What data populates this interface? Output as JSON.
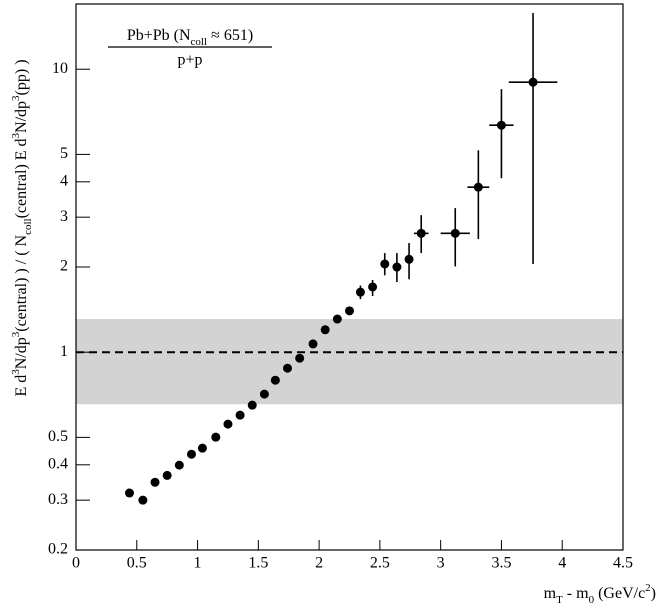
{
  "chart_data": {
    "type": "scatter",
    "annotation": {
      "numerator": [
        {
          "text": "Pb+Pb (N"
        },
        {
          "sub": "coll"
        },
        {
          "text": " ≈ 651)"
        }
      ],
      "denominator": "p+p"
    },
    "ylabel": [
      {
        "text": "E d"
      },
      {
        "sup": "3"
      },
      {
        "text": "N/dp"
      },
      {
        "sup": "3"
      },
      {
        "text": "(central) ) / ( N"
      },
      {
        "sub": "coll"
      },
      {
        "text": "(central) E d"
      },
      {
        "sup": "3"
      },
      {
        "text": "N/dp"
      },
      {
        "sup": "3"
      },
      {
        "text": "(pp) )"
      }
    ],
    "xlabel": [
      {
        "text": "m"
      },
      {
        "sub": "T"
      },
      {
        "text": " - m"
      },
      {
        "sub": "0"
      },
      {
        "text": " (GeV/c"
      },
      {
        "sup": "2"
      },
      {
        "text": ")"
      }
    ],
    "x": [
      0.44,
      0.55,
      0.65,
      0.75,
      0.85,
      0.95,
      1.04,
      1.15,
      1.25,
      1.35,
      1.45,
      1.55,
      1.64,
      1.74,
      1.84,
      1.95,
      2.05,
      2.15,
      2.25,
      2.34,
      2.44,
      2.54,
      2.64,
      2.74,
      2.84,
      3.12,
      3.31,
      3.5,
      3.76
    ],
    "y": [
      0.318,
      0.3,
      0.347,
      0.367,
      0.399,
      0.436,
      0.458,
      0.501,
      0.557,
      0.599,
      0.65,
      0.711,
      0.796,
      0.878,
      0.952,
      1.07,
      1.2,
      1.31,
      1.4,
      1.63,
      1.7,
      2.05,
      2.0,
      2.13,
      2.63,
      2.63,
      3.83,
      6.34,
      9.0
    ],
    "y_low": [
      null,
      null,
      null,
      null,
      null,
      null,
      null,
      null,
      null,
      null,
      null,
      null,
      null,
      null,
      null,
      null,
      null,
      null,
      null,
      1.54,
      1.58,
      1.87,
      1.77,
      1.81,
      2.24,
      2.01,
      2.51,
      4.12,
      2.05
    ],
    "y_high": [
      null,
      null,
      null,
      null,
      null,
      null,
      null,
      null,
      null,
      null,
      null,
      null,
      null,
      null,
      null,
      null,
      null,
      null,
      null,
      1.72,
      1.8,
      2.24,
      2.24,
      2.43,
      3.05,
      3.23,
      5.17,
      8.5,
      15.8
    ],
    "xerr": [
      null,
      null,
      null,
      null,
      null,
      null,
      null,
      null,
      null,
      null,
      null,
      null,
      null,
      null,
      null,
      null,
      null,
      null,
      null,
      null,
      null,
      null,
      null,
      null,
      0.06,
      0.12,
      0.09,
      0.1,
      0.2
    ],
    "color": "#000000",
    "band": {
      "range": [
        0.655,
        1.31
      ],
      "color": "#d3d3d3"
    },
    "reference_line": 1,
    "xlim": [
      0,
      4.5
    ],
    "ylim": [
      0.2,
      17
    ],
    "log_y": true,
    "xticks": [
      0,
      0.5,
      1,
      1.5,
      2,
      2.5,
      3,
      3.5,
      4,
      4.5
    ],
    "yticks": [
      0.2,
      0.3,
      0.4,
      0.5,
      1,
      2,
      3,
      4,
      5,
      10
    ]
  }
}
